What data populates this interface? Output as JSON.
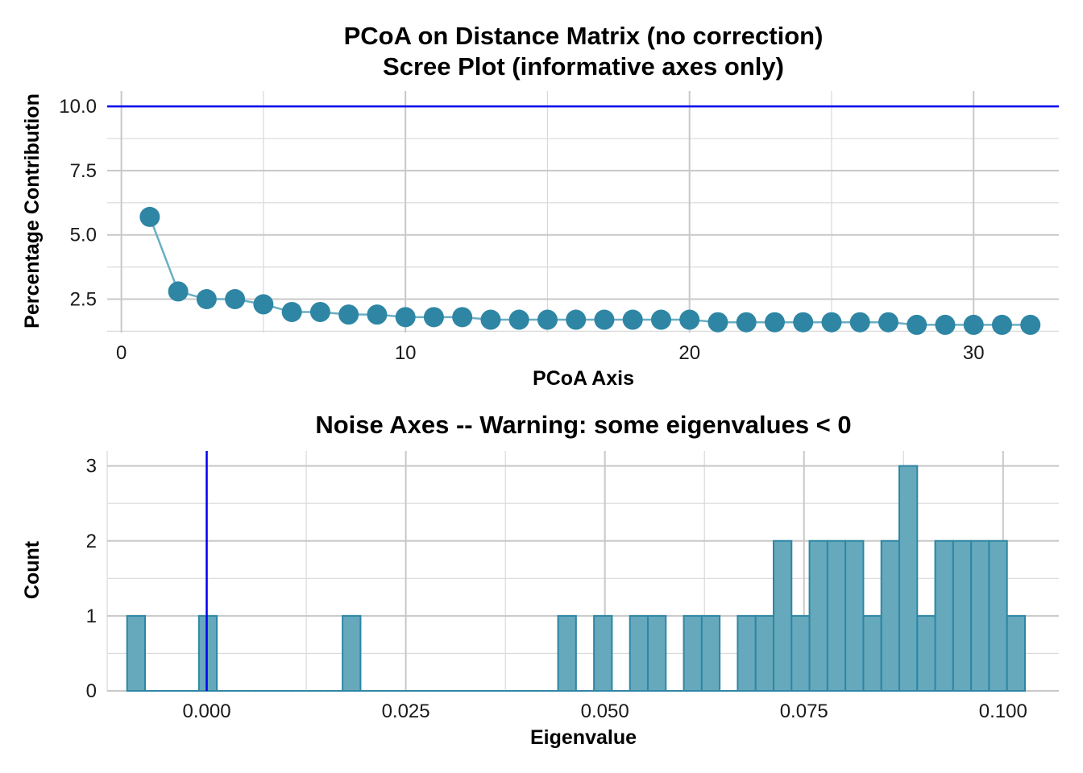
{
  "colors": {
    "point": "#2e86a4",
    "line": "#6aaec4",
    "bar_fill": "#66a9bc",
    "bar_stroke": "#2e86a4",
    "ref_line": "#0000ee"
  },
  "chart_data": [
    {
      "type": "line",
      "title": "PCoA on Distance Matrix (no correction)",
      "subtitle": "Scree Plot (informative axes only)",
      "xlabel": "PCoA Axis",
      "ylabel": "Percentage Contribution",
      "xlim": [
        -0.5,
        33
      ],
      "ylim": [
        1.2,
        10.6
      ],
      "x_ticks": [
        0,
        10,
        20,
        30
      ],
      "x_tick_labels": [
        "0",
        "10",
        "20",
        "30"
      ],
      "y_ticks": [
        2.5,
        5.0,
        7.5,
        10.0
      ],
      "y_tick_labels": [
        "2.5",
        "5.0",
        "7.5",
        "10.0"
      ],
      "grid": true,
      "reference_line_y": 10.0,
      "x": [
        1,
        2,
        3,
        4,
        5,
        6,
        7,
        8,
        9,
        10,
        11,
        12,
        13,
        14,
        15,
        16,
        17,
        18,
        19,
        20,
        21,
        22,
        23,
        24,
        25,
        26,
        27,
        28,
        29,
        30,
        31,
        32
      ],
      "values": [
        5.7,
        2.8,
        2.5,
        2.5,
        2.3,
        2.0,
        2.0,
        1.9,
        1.9,
        1.8,
        1.8,
        1.8,
        1.7,
        1.7,
        1.7,
        1.7,
        1.7,
        1.7,
        1.7,
        1.7,
        1.6,
        1.6,
        1.6,
        1.6,
        1.6,
        1.6,
        1.6,
        1.5,
        1.5,
        1.5,
        1.5,
        1.5
      ]
    },
    {
      "type": "bar",
      "title": "Noise Axes -- Warning: some eigenvalues < 0",
      "xlabel": "Eigenvalue",
      "ylabel": "Count",
      "xlim": [
        -0.0125,
        0.107
      ],
      "ylim": [
        0,
        3.2
      ],
      "x_ticks": [
        0.0,
        0.025,
        0.05,
        0.075,
        0.1
      ],
      "x_tick_labels": [
        "0.000",
        "0.025",
        "0.050",
        "0.075",
        "0.100"
      ],
      "y_ticks": [
        0,
        1,
        2,
        3
      ],
      "y_tick_labels": [
        "0",
        "1",
        "2",
        "3"
      ],
      "grid": true,
      "reference_line_x": 0.0,
      "bin_start": -0.01,
      "bin_width": 0.002255,
      "counts": [
        1,
        0,
        0,
        0,
        1,
        0,
        0,
        0,
        0,
        0,
        0,
        0,
        1,
        0,
        0,
        0,
        0,
        0,
        0,
        0,
        0,
        0,
        0,
        0,
        1,
        0,
        1,
        0,
        1,
        1,
        0,
        1,
        1,
        0,
        1,
        1,
        2,
        1,
        2,
        2,
        2,
        1,
        2,
        3,
        1,
        2,
        2,
        2,
        2,
        1
      ]
    }
  ]
}
